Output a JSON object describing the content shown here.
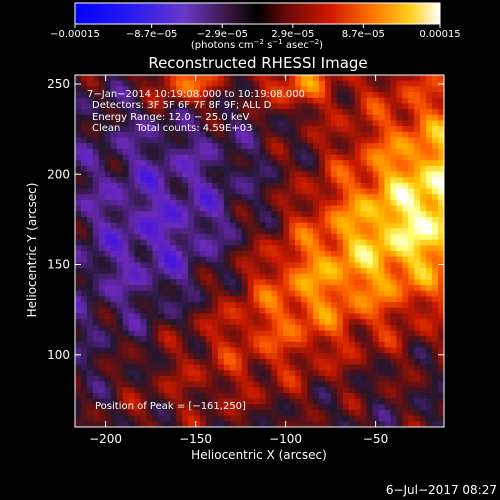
{
  "chart_data": {
    "type": "heatmap",
    "title": "Reconstructed RHESSI Image",
    "xlabel": "Heliocentric X (arcsec)",
    "ylabel": "Heliocentric Y (arcsec)",
    "xlim": [
      -217,
      -12
    ],
    "ylim": [
      60,
      255
    ],
    "xticks": [
      -200,
      -150,
      -100,
      -50
    ],
    "xtick_labels": [
      "−200",
      "−150",
      "−100",
      "−50"
    ],
    "yticks": [
      100,
      150,
      200,
      250
    ],
    "ytick_labels": [
      "100",
      "150",
      "200",
      "250"
    ],
    "colorbar": {
      "range": [
        -0.00015,
        0.00015
      ],
      "ticks": [
        -0.00015,
        -8.7e-05,
        -2.9e-05,
        2.9e-05,
        8.7e-05,
        0.00015
      ],
      "tick_labels": [
        "−0.00015",
        "−8.7e−05",
        "−2.9e−05",
        "2.9e−05",
        "8.7e−05",
        "0.00015"
      ],
      "unit_main": "(photons cm",
      "unit_sup1": "−2",
      "unit_mid": " s",
      "unit_sup2": "−1",
      "unit_mid2": " asec",
      "unit_sup3": "−2",
      "unit_end": ")"
    },
    "annotations": [
      "7−Jan−2014 10:19:08.000 to 10:19:08.000",
      "Detectors: 3F 5F 6F 7F 8F 9F; ALL D",
      "Energy Range: 12.0 − 25.0 keV",
      "Clean     Total counts: 4.59E+03"
    ],
    "peak_label": "Position of Peak = [−161,250]",
    "peak": [
      -161,
      250
    ],
    "grid": false,
    "colors": {
      "colormap": [
        "#0000ff",
        "#3c10e6",
        "#6a2ab8",
        "#23162e",
        "#6a1010",
        "#c81a00",
        "#ff6000",
        "#ffc000",
        "#ffff78",
        "#ffffff"
      ]
    }
  },
  "footer": {
    "date": "6−Jul−2017 08:27"
  }
}
